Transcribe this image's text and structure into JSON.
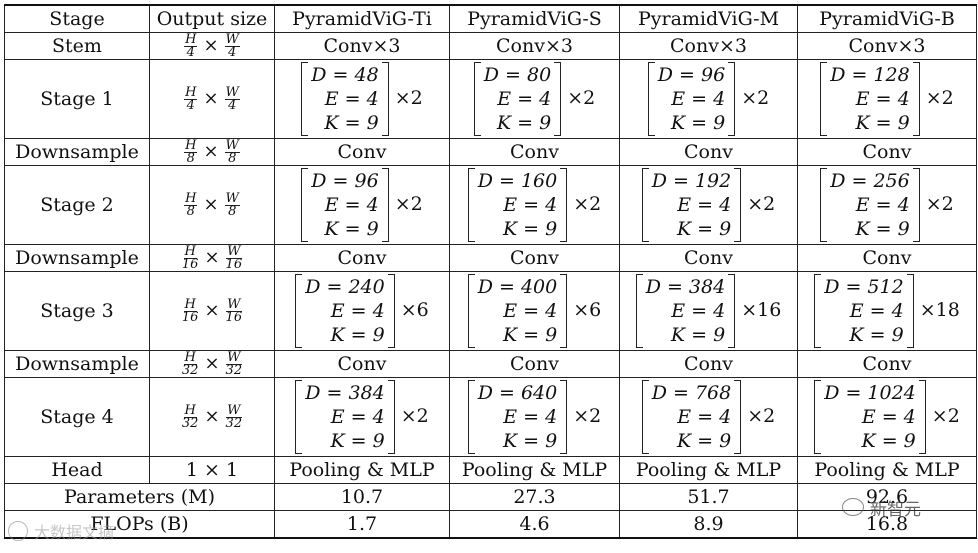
{
  "table": {
    "headers": [
      "Stage",
      "Output size",
      "PyramidViG-Ti",
      "PyramidViG-S",
      "PyramidViG-M",
      "PyramidViG-B"
    ],
    "stem": {
      "label": "Stem",
      "frac1": {
        "num": "H",
        "den": "4"
      },
      "frac2": {
        "num": "W",
        "den": "4"
      },
      "cells": [
        "Conv×3",
        "Conv×3",
        "Conv×3",
        "Conv×3"
      ]
    },
    "stages": [
      {
        "label": "Stage 1",
        "frac1": {
          "num": "H",
          "den": "4"
        },
        "frac2": {
          "num": "W",
          "den": "4"
        },
        "blocks": [
          {
            "D": "D = 48",
            "E": "E = 4",
            "K": "K = 9",
            "mult": "×2"
          },
          {
            "D": "D = 80",
            "E": "E = 4",
            "K": "K = 9",
            "mult": "×2"
          },
          {
            "D": "D = 96",
            "E": "E = 4",
            "K": "K = 9",
            "mult": "×2"
          },
          {
            "D": "D = 128",
            "E": "E = 4",
            "K": "K = 9",
            "mult": "×2"
          }
        ]
      },
      {
        "label": "Stage 2",
        "frac1": {
          "num": "H",
          "den": "8"
        },
        "frac2": {
          "num": "W",
          "den": "8"
        },
        "blocks": [
          {
            "D": "D = 96",
            "E": "E = 4",
            "K": "K = 9",
            "mult": "×2"
          },
          {
            "D": "D = 160",
            "E": "E = 4",
            "K": "K = 9",
            "mult": "×2"
          },
          {
            "D": "D = 192",
            "E": "E = 4",
            "K": "K = 9",
            "mult": "×2"
          },
          {
            "D": "D = 256",
            "E": "E = 4",
            "K": "K = 9",
            "mult": "×2"
          }
        ]
      },
      {
        "label": "Stage 3",
        "frac1": {
          "num": "H",
          "den": "16"
        },
        "frac2": {
          "num": "W",
          "den": "16"
        },
        "blocks": [
          {
            "D": "D = 240",
            "E": "E = 4",
            "K": "K = 9",
            "mult": "×6"
          },
          {
            "D": "D = 400",
            "E": "E = 4",
            "K": "K = 9",
            "mult": "×6"
          },
          {
            "D": "D = 384",
            "E": "E = 4",
            "K": "K = 9",
            "mult": "×16"
          },
          {
            "D": "D = 512",
            "E": "E = 4",
            "K": "K = 9",
            "mult": "×18"
          }
        ]
      },
      {
        "label": "Stage 4",
        "frac1": {
          "num": "H",
          "den": "32"
        },
        "frac2": {
          "num": "W",
          "den": "32"
        },
        "blocks": [
          {
            "D": "D = 384",
            "E": "E = 4",
            "K": "K = 9",
            "mult": "×2"
          },
          {
            "D": "D = 640",
            "E": "E = 4",
            "K": "K = 9",
            "mult": "×2"
          },
          {
            "D": "D = 768",
            "E": "E = 4",
            "K": "K = 9",
            "mult": "×2"
          },
          {
            "D": "D = 1024",
            "E": "E = 4",
            "K": "K = 9",
            "mult": "×2"
          }
        ]
      }
    ],
    "downsamples": [
      {
        "label": "Downsample",
        "frac1": {
          "num": "H",
          "den": "8"
        },
        "frac2": {
          "num": "W",
          "den": "8"
        },
        "cells": [
          "Conv",
          "Conv",
          "Conv",
          "Conv"
        ]
      },
      {
        "label": "Downsample",
        "frac1": {
          "num": "H",
          "den": "16"
        },
        "frac2": {
          "num": "W",
          "den": "16"
        },
        "cells": [
          "Conv",
          "Conv",
          "Conv",
          "Conv"
        ]
      },
      {
        "label": "Downsample",
        "frac1": {
          "num": "H",
          "den": "32"
        },
        "frac2": {
          "num": "W",
          "den": "32"
        },
        "cells": [
          "Conv",
          "Conv",
          "Conv",
          "Conv"
        ]
      }
    ],
    "head": {
      "label": "Head",
      "size": "1 × 1",
      "cells": [
        "Pooling & MLP",
        "Pooling & MLP",
        "Pooling & MLP",
        "Pooling & MLP"
      ]
    },
    "params": {
      "label": "Parameters (M)",
      "cells": [
        "10.7",
        "27.3",
        "51.7",
        "92.6"
      ]
    },
    "flops": {
      "label": "FLOPs (B)",
      "cells": [
        "1.7",
        "4.6",
        "8.9",
        "16.8"
      ]
    },
    "times_sign": "×"
  },
  "watermarks": {
    "left": "大数据文摘",
    "right": "新智元"
  }
}
